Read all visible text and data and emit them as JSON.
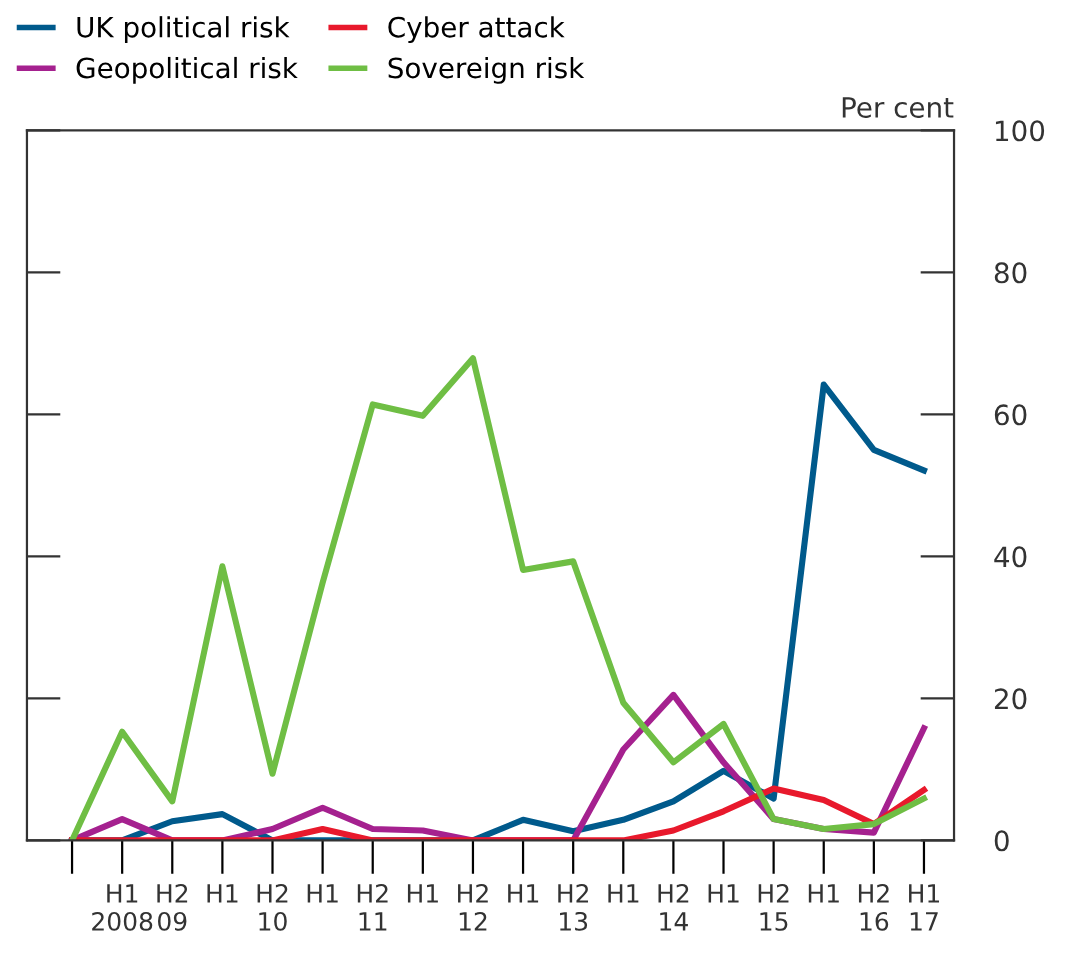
{
  "chart_data": {
    "type": "line",
    "categories": [
      null,
      "H1\n2008",
      "H2\n09",
      "H1",
      "H2\n10",
      "H1",
      "H2\n11",
      "H1",
      "H2\n12",
      "H1",
      "H2\n13",
      "H1",
      "H2\n14",
      "H1",
      "H2\n15",
      "H1",
      "H2\n16",
      "H1\n17"
    ],
    "series": [
      {
        "name": "UK political risk",
        "color": "#005a8c",
        "values": [
          0,
          0,
          2.7,
          3.7,
          0,
          0,
          0,
          0,
          0,
          2.9,
          1.3,
          2.9,
          5.5,
          9.8,
          5.9,
          64.2,
          55.0,
          52.1
        ]
      },
      {
        "name": "Geopolitical risk",
        "color": "#a5218f",
        "values": [
          0,
          3.0,
          0,
          0,
          1.6,
          4.6,
          1.6,
          1.4,
          0,
          0,
          0,
          12.8,
          20.5,
          11.0,
          3.0,
          1.6,
          1.1,
          15.8
        ]
      },
      {
        "name": "Cyber attack",
        "color": "#e8192c",
        "values": [
          0,
          0,
          0,
          0,
          0,
          1.6,
          0,
          0,
          0,
          0,
          0,
          0,
          1.4,
          4.1,
          7.3,
          5.7,
          2.3,
          7.1
        ]
      },
      {
        "name": "Sovereign risk",
        "color": "#6fbe44",
        "values": [
          0,
          15.3,
          5.5,
          38.6,
          9.4,
          36.3,
          61.4,
          59.8,
          67.9,
          38.1,
          39.3,
          19.4,
          11.0,
          16.4,
          3.0,
          1.6,
          2.3,
          5.9
        ]
      }
    ],
    "ylabel": "Per cent",
    "ylim": [
      0,
      100
    ],
    "yticks": [
      0,
      20,
      40,
      60,
      80,
      100
    ],
    "legend": "top left",
    "grid": false,
    "marker": "none",
    "line_style": "solid"
  }
}
